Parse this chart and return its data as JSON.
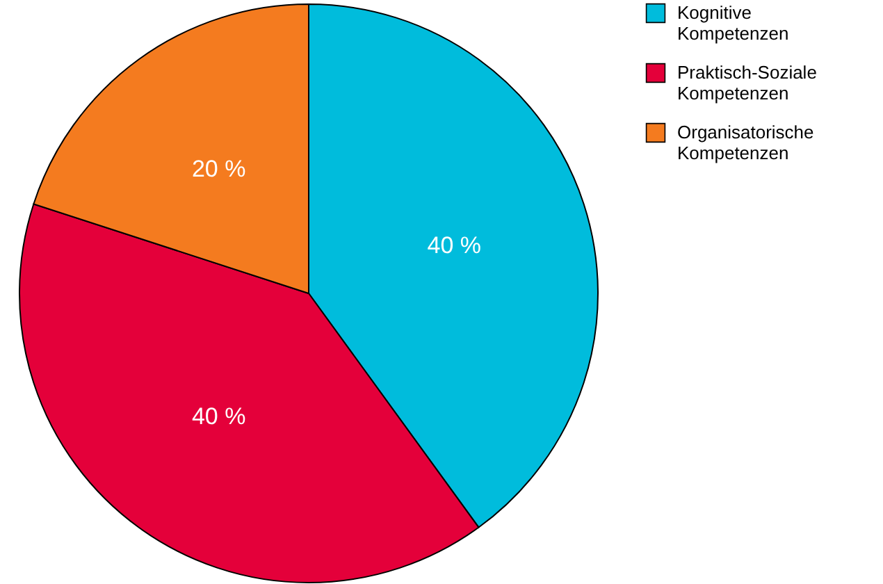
{
  "chart_data": {
    "type": "pie",
    "categories": [
      "Kognitive Kompetenzen",
      "Praktisch-Soziale Kompetenzen",
      "Organisatorische Kompetenzen"
    ],
    "values": [
      40,
      40,
      20
    ],
    "colors": [
      "#00bcdc",
      "#e4003a",
      "#f47b1f"
    ],
    "value_labels": [
      "40 %",
      "40 %",
      "20 %"
    ],
    "legend": "right"
  }
}
